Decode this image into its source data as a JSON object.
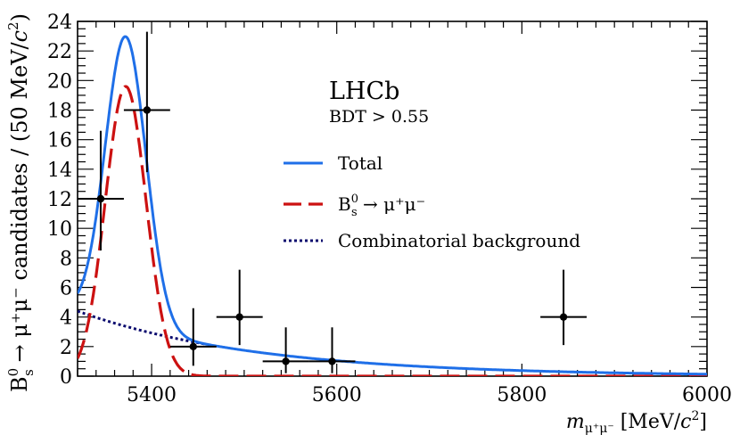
{
  "chart_data": {
    "type": "line",
    "experiment_label": "LHCb",
    "selection_label": "BDT > 0.55",
    "ylabel": {
      "prefix": "B",
      "sup": "0",
      "sub": "s",
      "rest": " → μ⁺μ⁻ candidates / (50 MeV/",
      "italic": "c",
      "sup2": "2",
      "suffix": ")"
    },
    "xlabel": {
      "var": "m",
      "sub": "μ⁺μ⁻",
      "rest": " [MeV/",
      "italic": "c",
      "sup": "2",
      "suffix": "]"
    },
    "xlim": [
      5320,
      6000
    ],
    "ylim": [
      0,
      24
    ],
    "x_ticks_major": [
      5400,
      5600,
      5800,
      6000
    ],
    "x_tick_labels": [
      "5400",
      "5600",
      "5800",
      "6000"
    ],
    "y_ticks_major": [
      0,
      2,
      4,
      6,
      8,
      10,
      12,
      14,
      16,
      18,
      20,
      22,
      24
    ],
    "y_tick_labels": [
      "0",
      "2",
      "4",
      "6",
      "8",
      "10",
      "12",
      "14",
      "16",
      "18",
      "20",
      "22",
      "24"
    ],
    "data_points": [
      {
        "x": 5345,
        "y": 12,
        "xerr": 25,
        "yerr_low": 3.5,
        "yerr_high": 4.6
      },
      {
        "x": 5395,
        "y": 18,
        "xerr": 25,
        "yerr_low": 4.2,
        "yerr_high": 5.3
      },
      {
        "x": 5445,
        "y": 2,
        "xerr": 25,
        "yerr_low": 1.3,
        "yerr_high": 2.6
      },
      {
        "x": 5495,
        "y": 4,
        "xerr": 25,
        "yerr_low": 1.9,
        "yerr_high": 3.2
      },
      {
        "x": 5545,
        "y": 1,
        "xerr": 25,
        "yerr_low": 0.8,
        "yerr_high": 2.3
      },
      {
        "x": 5595,
        "y": 1,
        "xerr": 25,
        "yerr_low": 0.8,
        "yerr_high": 2.3
      },
      {
        "x": 5845,
        "y": 4,
        "xerr": 25,
        "yerr_low": 1.9,
        "yerr_high": 3.2
      }
    ],
    "series": [
      {
        "name": "Total",
        "style": "solid",
        "color": "#1f6fe8"
      },
      {
        "name": "B_s^0 → μ⁺μ⁻",
        "style": "dashed",
        "color": "#cc1111"
      },
      {
        "name": "Combinatorial background",
        "style": "dotted",
        "color": "#0a0a6e"
      }
    ],
    "legend": {
      "position": "top-right",
      "entries": [
        {
          "series": 0,
          "label": "Total"
        },
        {
          "series": 1,
          "label_main": "B",
          "label_sup": "0",
          "label_sub": "s",
          "label_rest": " → μ⁺μ⁻"
        },
        {
          "series": 2,
          "label": "Combinatorial background"
        }
      ]
    },
    "signal_model": {
      "mean": 5372,
      "sigma": 22,
      "peak": 19.6
    },
    "background_model": {
      "amplitude_at_min": 4.4,
      "decay_mev": 195
    },
    "grid": false
  }
}
